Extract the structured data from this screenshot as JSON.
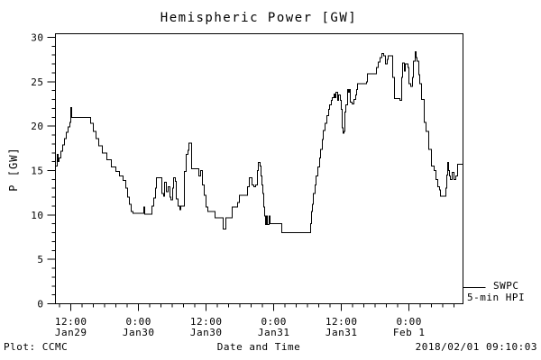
{
  "title": "Hemispheric Power [GW]",
  "colors": {
    "background": "#ffffff",
    "foreground": "#000000"
  },
  "y_axis": {
    "label": "P [GW]",
    "ticks": [
      0,
      5,
      10,
      15,
      20,
      25,
      30
    ],
    "minor_step": 1,
    "range": [
      0,
      30
    ]
  },
  "x_axis": {
    "title": "Date and Time",
    "range_hours": [
      9.25,
      81.6
    ],
    "minor_step_hours": 2,
    "ticks": [
      {
        "time": "12:00",
        "date": "Jan29",
        "hours": 12
      },
      {
        "time": "0:00",
        "date": "Jan30",
        "hours": 24
      },
      {
        "time": "12:00",
        "date": "Jan30",
        "hours": 36
      },
      {
        "time": "0:00",
        "date": "Jan31",
        "hours": 48
      },
      {
        "time": "12:00",
        "date": "Jan31",
        "hours": 60
      },
      {
        "time": "0:00",
        "date": "Feb 1",
        "hours": 72
      }
    ]
  },
  "legend": {
    "series": "SWPC",
    "desc": "5-min HPI"
  },
  "footer": {
    "left": "Plot: CCMC",
    "center": "Date and Time",
    "right": "2018/02/01 09:10:03"
  },
  "chart_data": {
    "type": "line",
    "title": "Hemispheric Power [GW]",
    "xlabel": "Date and Time",
    "ylabel": "P [GW]",
    "ylim": [
      0,
      30
    ],
    "x_unit": "hours since 2018-01-29 00:00 UT",
    "grid": false,
    "legend_position": "right-bottom-outside",
    "series": [
      {
        "name": "SWPC 5-min HPI",
        "step": true,
        "points": [
          [
            9.25,
            15.5
          ],
          [
            9.55,
            16.8
          ],
          [
            9.75,
            16.0
          ],
          [
            9.9,
            16.4
          ],
          [
            10.2,
            17.2
          ],
          [
            10.55,
            17.9
          ],
          [
            10.85,
            18.6
          ],
          [
            11.15,
            19.3
          ],
          [
            11.5,
            19.9
          ],
          [
            11.8,
            20.4
          ],
          [
            11.95,
            22.1
          ],
          [
            12.15,
            21.0
          ],
          [
            15.15,
            21.0
          ],
          [
            15.5,
            20.3
          ],
          [
            15.95,
            19.4
          ],
          [
            16.45,
            18.6
          ],
          [
            16.95,
            17.8
          ],
          [
            17.55,
            17.0
          ],
          [
            18.35,
            16.2
          ],
          [
            19.15,
            15.4
          ],
          [
            19.95,
            14.9
          ],
          [
            20.6,
            14.4
          ],
          [
            21.25,
            13.9
          ],
          [
            21.75,
            13.0
          ],
          [
            22.05,
            12.0
          ],
          [
            22.35,
            11.2
          ],
          [
            22.7,
            10.4
          ],
          [
            23.0,
            10.2
          ],
          [
            24.75,
            10.2
          ],
          [
            24.95,
            10.9
          ],
          [
            25.1,
            10.1
          ],
          [
            26.05,
            10.1
          ],
          [
            26.35,
            11.0
          ],
          [
            26.7,
            11.9
          ],
          [
            27.0,
            13.0
          ],
          [
            27.2,
            14.2
          ],
          [
            27.8,
            14.2
          ],
          [
            28.15,
            12.4
          ],
          [
            28.45,
            12.1
          ],
          [
            28.6,
            13.7
          ],
          [
            28.95,
            12.6
          ],
          [
            29.25,
            13.2
          ],
          [
            29.55,
            12.0
          ],
          [
            29.75,
            11.7
          ],
          [
            30.05,
            13.0
          ],
          [
            30.2,
            14.2
          ],
          [
            30.55,
            13.8
          ],
          [
            30.7,
            11.8
          ],
          [
            31.0,
            11.0
          ],
          [
            31.35,
            10.6
          ],
          [
            31.5,
            11.0
          ],
          [
            31.8,
            11.0
          ],
          [
            32.15,
            14.9
          ],
          [
            32.45,
            16.8
          ],
          [
            32.75,
            17.3
          ],
          [
            32.95,
            18.1
          ],
          [
            33.25,
            18.1
          ],
          [
            33.4,
            15.2
          ],
          [
            34.35,
            15.2
          ],
          [
            34.7,
            14.4
          ],
          [
            35.0,
            15.0
          ],
          [
            35.35,
            13.4
          ],
          [
            35.65,
            12.2
          ],
          [
            35.95,
            10.9
          ],
          [
            36.3,
            10.4
          ],
          [
            37.4,
            10.4
          ],
          [
            37.55,
            9.7
          ],
          [
            38.7,
            9.7
          ],
          [
            39.0,
            8.4
          ],
          [
            39.35,
            8.4
          ],
          [
            39.5,
            9.7
          ],
          [
            40.3,
            9.7
          ],
          [
            40.6,
            10.9
          ],
          [
            41.1,
            10.9
          ],
          [
            41.55,
            11.4
          ],
          [
            41.9,
            12.2
          ],
          [
            43.0,
            12.2
          ],
          [
            43.35,
            13.2
          ],
          [
            43.65,
            14.2
          ],
          [
            43.95,
            14.2
          ],
          [
            44.15,
            13.4
          ],
          [
            44.45,
            13.2
          ],
          [
            44.75,
            13.4
          ],
          [
            45.1,
            15.0
          ],
          [
            45.25,
            15.9
          ],
          [
            45.55,
            15.5
          ],
          [
            45.75,
            14.4
          ],
          [
            45.9,
            13.4
          ],
          [
            46.05,
            12.4
          ],
          [
            46.2,
            10.9
          ],
          [
            46.35,
            9.9
          ],
          [
            46.55,
            8.9
          ],
          [
            46.7,
            9.9
          ],
          [
            46.85,
            8.9
          ],
          [
            47.15,
            9.9
          ],
          [
            47.35,
            9.0
          ],
          [
            49.25,
            9.0
          ],
          [
            49.4,
            8.0
          ],
          [
            54.35,
            8.0
          ],
          [
            54.55,
            9.0
          ],
          [
            54.7,
            10.4
          ],
          [
            54.85,
            11.2
          ],
          [
            55.0,
            12.4
          ],
          [
            55.35,
            13.4
          ],
          [
            55.5,
            14.4
          ],
          [
            55.8,
            15.4
          ],
          [
            56.15,
            16.4
          ],
          [
            56.3,
            17.4
          ],
          [
            56.6,
            18.5
          ],
          [
            56.8,
            19.5
          ],
          [
            57.1,
            20.3
          ],
          [
            57.4,
            21.2
          ],
          [
            57.75,
            21.9
          ],
          [
            57.9,
            22.4
          ],
          [
            58.2,
            22.9
          ],
          [
            58.35,
            23.2
          ],
          [
            58.7,
            23.6
          ],
          [
            58.85,
            23.2
          ],
          [
            59.0,
            23.8
          ],
          [
            59.35,
            22.9
          ],
          [
            59.5,
            23.5
          ],
          [
            59.8,
            22.9
          ],
          [
            59.95,
            21.9
          ],
          [
            60.15,
            19.8
          ],
          [
            60.3,
            19.2
          ],
          [
            60.45,
            19.4
          ],
          [
            60.6,
            21.6
          ],
          [
            60.75,
            22.4
          ],
          [
            61.1,
            24.1
          ],
          [
            61.25,
            23.8
          ],
          [
            61.4,
            24.1
          ],
          [
            61.55,
            22.7
          ],
          [
            61.9,
            22.5
          ],
          [
            62.2,
            23.0
          ],
          [
            62.55,
            23.5
          ],
          [
            62.7,
            24.1
          ],
          [
            62.85,
            24.8
          ],
          [
            64.45,
            25.0
          ],
          [
            64.6,
            25.9
          ],
          [
            65.9,
            25.9
          ],
          [
            66.2,
            26.6
          ],
          [
            66.55,
            27.2
          ],
          [
            66.85,
            27.7
          ],
          [
            67.15,
            28.2
          ],
          [
            67.5,
            27.9
          ],
          [
            67.8,
            27.0
          ],
          [
            68.15,
            27.5
          ],
          [
            68.3,
            27.9
          ],
          [
            68.75,
            27.9
          ],
          [
            69.1,
            25.5
          ],
          [
            69.4,
            23.1
          ],
          [
            70.35,
            22.9
          ],
          [
            70.7,
            25.5
          ],
          [
            70.85,
            27.1
          ],
          [
            71.15,
            26.2
          ],
          [
            71.35,
            27.0
          ],
          [
            71.65,
            27.0
          ],
          [
            71.8,
            26.6
          ],
          [
            71.95,
            24.8
          ],
          [
            72.3,
            24.5
          ],
          [
            72.6,
            25.5
          ],
          [
            72.75,
            27.3
          ],
          [
            73.1,
            28.4
          ],
          [
            73.25,
            27.7
          ],
          [
            73.4,
            27.3
          ],
          [
            73.7,
            25.8
          ],
          [
            73.9,
            24.8
          ],
          [
            74.2,
            23.0
          ],
          [
            74.7,
            20.4
          ],
          [
            75.0,
            19.4
          ],
          [
            75.5,
            17.4
          ],
          [
            75.95,
            15.5
          ],
          [
            76.45,
            15.0
          ],
          [
            76.75,
            14.0
          ],
          [
            77.1,
            13.2
          ],
          [
            77.4,
            12.8
          ],
          [
            77.55,
            12.1
          ],
          [
            78.35,
            12.1
          ],
          [
            78.55,
            13.0
          ],
          [
            78.7,
            14.5
          ],
          [
            78.85,
            15.9
          ],
          [
            79.0,
            15.0
          ],
          [
            79.15,
            14.4
          ],
          [
            79.35,
            14.0
          ],
          [
            79.65,
            14.8
          ],
          [
            79.95,
            14.0
          ],
          [
            80.3,
            14.4
          ],
          [
            80.6,
            15.7
          ],
          [
            81.55,
            15.8
          ]
        ]
      }
    ]
  }
}
